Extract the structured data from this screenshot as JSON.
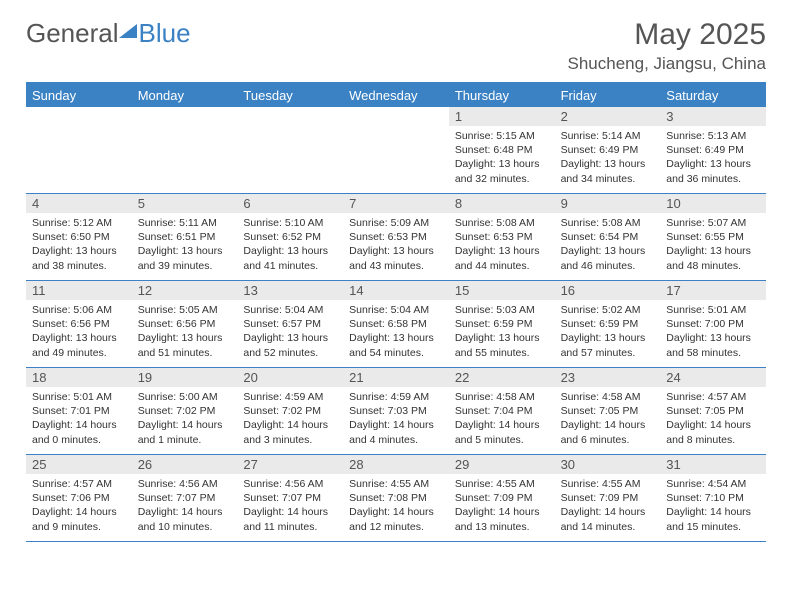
{
  "logo": {
    "part1": "General",
    "part2": "Blue"
  },
  "title": "May 2025",
  "location": "Shucheng, Jiangsu, China",
  "colors": {
    "header_bg": "#3b82c4",
    "header_text": "#ffffff",
    "daynum_bg": "#eaeaea",
    "text": "#333333",
    "border": "#3b82c4"
  },
  "typography": {
    "title_fontsize": 30,
    "location_fontsize": 17,
    "dayheader_fontsize": 13,
    "cell_fontsize": 10.5
  },
  "layout": {
    "columns": 7,
    "rows": 5,
    "leading_blanks": 4
  },
  "day_names": [
    "Sunday",
    "Monday",
    "Tuesday",
    "Wednesday",
    "Thursday",
    "Friday",
    "Saturday"
  ],
  "days": [
    {
      "n": 1,
      "sr": "5:15 AM",
      "ss": "6:48 PM",
      "dl": "13 hours and 32 minutes."
    },
    {
      "n": 2,
      "sr": "5:14 AM",
      "ss": "6:49 PM",
      "dl": "13 hours and 34 minutes."
    },
    {
      "n": 3,
      "sr": "5:13 AM",
      "ss": "6:49 PM",
      "dl": "13 hours and 36 minutes."
    },
    {
      "n": 4,
      "sr": "5:12 AM",
      "ss": "6:50 PM",
      "dl": "13 hours and 38 minutes."
    },
    {
      "n": 5,
      "sr": "5:11 AM",
      "ss": "6:51 PM",
      "dl": "13 hours and 39 minutes."
    },
    {
      "n": 6,
      "sr": "5:10 AM",
      "ss": "6:52 PM",
      "dl": "13 hours and 41 minutes."
    },
    {
      "n": 7,
      "sr": "5:09 AM",
      "ss": "6:53 PM",
      "dl": "13 hours and 43 minutes."
    },
    {
      "n": 8,
      "sr": "5:08 AM",
      "ss": "6:53 PM",
      "dl": "13 hours and 44 minutes."
    },
    {
      "n": 9,
      "sr": "5:08 AM",
      "ss": "6:54 PM",
      "dl": "13 hours and 46 minutes."
    },
    {
      "n": 10,
      "sr": "5:07 AM",
      "ss": "6:55 PM",
      "dl": "13 hours and 48 minutes."
    },
    {
      "n": 11,
      "sr": "5:06 AM",
      "ss": "6:56 PM",
      "dl": "13 hours and 49 minutes."
    },
    {
      "n": 12,
      "sr": "5:05 AM",
      "ss": "6:56 PM",
      "dl": "13 hours and 51 minutes."
    },
    {
      "n": 13,
      "sr": "5:04 AM",
      "ss": "6:57 PM",
      "dl": "13 hours and 52 minutes."
    },
    {
      "n": 14,
      "sr": "5:04 AM",
      "ss": "6:58 PM",
      "dl": "13 hours and 54 minutes."
    },
    {
      "n": 15,
      "sr": "5:03 AM",
      "ss": "6:59 PM",
      "dl": "13 hours and 55 minutes."
    },
    {
      "n": 16,
      "sr": "5:02 AM",
      "ss": "6:59 PM",
      "dl": "13 hours and 57 minutes."
    },
    {
      "n": 17,
      "sr": "5:01 AM",
      "ss": "7:00 PM",
      "dl": "13 hours and 58 minutes."
    },
    {
      "n": 18,
      "sr": "5:01 AM",
      "ss": "7:01 PM",
      "dl": "14 hours and 0 minutes."
    },
    {
      "n": 19,
      "sr": "5:00 AM",
      "ss": "7:02 PM",
      "dl": "14 hours and 1 minute."
    },
    {
      "n": 20,
      "sr": "4:59 AM",
      "ss": "7:02 PM",
      "dl": "14 hours and 3 minutes."
    },
    {
      "n": 21,
      "sr": "4:59 AM",
      "ss": "7:03 PM",
      "dl": "14 hours and 4 minutes."
    },
    {
      "n": 22,
      "sr": "4:58 AM",
      "ss": "7:04 PM",
      "dl": "14 hours and 5 minutes."
    },
    {
      "n": 23,
      "sr": "4:58 AM",
      "ss": "7:05 PM",
      "dl": "14 hours and 6 minutes."
    },
    {
      "n": 24,
      "sr": "4:57 AM",
      "ss": "7:05 PM",
      "dl": "14 hours and 8 minutes."
    },
    {
      "n": 25,
      "sr": "4:57 AM",
      "ss": "7:06 PM",
      "dl": "14 hours and 9 minutes."
    },
    {
      "n": 26,
      "sr": "4:56 AM",
      "ss": "7:07 PM",
      "dl": "14 hours and 10 minutes."
    },
    {
      "n": 27,
      "sr": "4:56 AM",
      "ss": "7:07 PM",
      "dl": "14 hours and 11 minutes."
    },
    {
      "n": 28,
      "sr": "4:55 AM",
      "ss": "7:08 PM",
      "dl": "14 hours and 12 minutes."
    },
    {
      "n": 29,
      "sr": "4:55 AM",
      "ss": "7:09 PM",
      "dl": "14 hours and 13 minutes."
    },
    {
      "n": 30,
      "sr": "4:55 AM",
      "ss": "7:09 PM",
      "dl": "14 hours and 14 minutes."
    },
    {
      "n": 31,
      "sr": "4:54 AM",
      "ss": "7:10 PM",
      "dl": "14 hours and 15 minutes."
    }
  ],
  "labels": {
    "sunrise": "Sunrise:",
    "sunset": "Sunset:",
    "daylight": "Daylight:"
  }
}
